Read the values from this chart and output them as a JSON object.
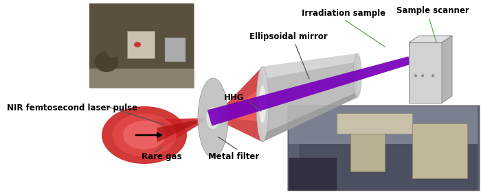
{
  "fig_width": 7.0,
  "fig_height": 2.8,
  "dpi": 100,
  "bg_color": "#ffffff",
  "labels": {
    "NIR_femtosecond": "NIR femtosecond laser pulse",
    "rare_gas": "Rare gas",
    "HHG": "HHG",
    "metal_filter": "Metal filter",
    "ellipsoidal_mirror": "Ellipsoidal mirror",
    "irradiation_sample": "Irradiation sample",
    "sample_scanner": "Sample scanner"
  },
  "colors": {
    "red_dark": "#cc2222",
    "red_mid": "#ee4444",
    "red_light": "#ff8888",
    "red_glow": "#ffcccc",
    "purple_beam": "#7700bb",
    "mirror_body": "#b0b0b0",
    "mirror_dark": "#808080",
    "mirror_light": "#d8d8d8",
    "mirror_white": "#f0f0f0",
    "sample_box": "#c8c8c8",
    "sample_box_dark": "#909090",
    "label_color": "#000000",
    "connector_color": "#55aa55",
    "line_color": "#555555"
  }
}
